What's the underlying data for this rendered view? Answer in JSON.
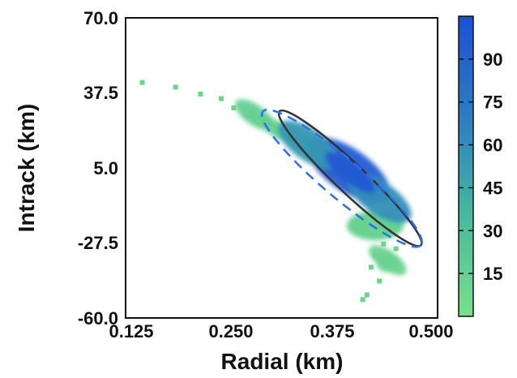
{
  "chart_data": {
    "type": "heatmap",
    "title": "",
    "xlabel": "Radial (km)",
    "ylabel": "Intrack (km)",
    "xlim": [
      0.125,
      0.5
    ],
    "ylim": [
      -60.0,
      70.0
    ],
    "x_ticks": [
      "0.125",
      "0.250",
      "0.375",
      "0.500"
    ],
    "y_ticks": [
      "-60.0",
      "-27.5",
      "5.0",
      "37.5",
      "70.0"
    ],
    "grid": false,
    "colorbar": {
      "ticks": [
        "15",
        "30",
        "45",
        "60",
        "75",
        "90"
      ],
      "range": [
        0,
        105
      ],
      "colors": [
        "#7be08a",
        "#1d4fd6"
      ]
    },
    "density_core": [
      {
        "x": 0.393,
        "y": 4.0,
        "density": 95
      },
      {
        "x": 0.345,
        "y": 15.0,
        "density": 55
      },
      {
        "x": 0.43,
        "y": -8.0,
        "density": 60
      },
      {
        "x": 0.28,
        "y": 28.0,
        "density": 15
      },
      {
        "x": 0.44,
        "y": -35.0,
        "density": 12
      }
    ],
    "ellipses": [
      {
        "name": "",
        "style": "solid",
        "color": "#333333",
        "center": [
          0.39,
          2.5
        ],
        "endpoints": [
          [
            0.31,
            29.5
          ],
          [
            0.48,
            -28.5
          ]
        ]
      },
      {
        "name": "",
        "style": "dashed",
        "color": "#2f6fe8",
        "center": [
          0.385,
          2.5
        ],
        "endpoints": [
          [
            0.29,
            29.5
          ],
          [
            0.48,
            -28.5
          ]
        ]
      }
    ]
  }
}
